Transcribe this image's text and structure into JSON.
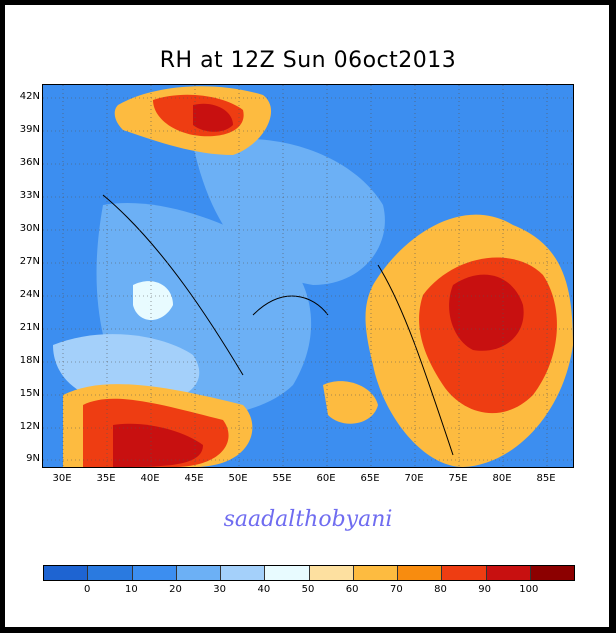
{
  "title": "RH at 12Z Sun 06oct2013",
  "signature": "saadalthobyani",
  "y_labels": [
    "42N",
    "39N",
    "36N",
    "33N",
    "30N",
    "27N",
    "24N",
    "21N",
    "18N",
    "15N",
    "12N",
    "9N"
  ],
  "x_labels": [
    "30E",
    "35E",
    "40E",
    "45E",
    "50E",
    "55E",
    "60E",
    "65E",
    "70E",
    "75E",
    "80E",
    "85E"
  ],
  "colorbar": {
    "labels": [
      "0",
      "10",
      "20",
      "30",
      "40",
      "50",
      "60",
      "70",
      "80",
      "90",
      "100"
    ],
    "colors": [
      "#1e64d2",
      "#2a7ae0",
      "#3c8ef0",
      "#6cb0f5",
      "#a4d0fa",
      "#e8fbff",
      "#fde0a0",
      "#fdbb40",
      "#f88c0f",
      "#ee3d12",
      "#c81010",
      "#8c0000"
    ]
  },
  "map_colors": {
    "ocean": "#2a7ae0",
    "land_base": "#6cb0f5",
    "very_dry": "#3c8ef0",
    "moist": "#fdbb40",
    "wet": "#ee3d12",
    "saturated": "#c81010",
    "light": "#a4d0fa",
    "near_white": "#e8fbff"
  }
}
